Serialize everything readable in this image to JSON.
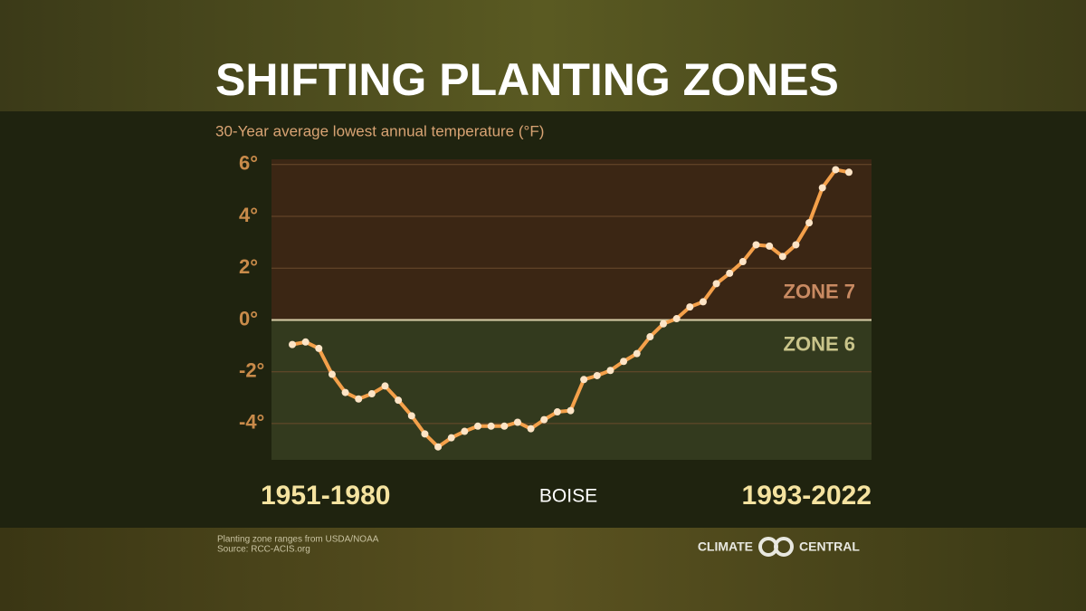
{
  "chart_data": {
    "type": "line",
    "title": "SHIFTING PLANTING ZONES",
    "subtitle": "30-Year average lowest annual temperature (°F)",
    "x_label": "BOISE",
    "categories": [
      "1951-1980",
      null,
      null,
      null,
      null,
      null,
      null,
      null,
      null,
      null,
      null,
      null,
      null,
      null,
      null,
      null,
      null,
      null,
      null,
      null,
      null,
      null,
      null,
      null,
      null,
      null,
      null,
      null,
      null,
      null,
      null,
      null,
      null,
      null,
      null,
      null,
      null,
      null,
      null,
      null,
      null,
      null,
      "1993-2022"
    ],
    "series": [
      {
        "name": "Boise",
        "color": "#f4a04a",
        "values": [
          -0.95,
          -0.85,
          -1.1,
          -2.1,
          -2.8,
          -3.05,
          -2.85,
          -2.55,
          -3.1,
          -3.7,
          -4.4,
          -4.9,
          -4.55,
          -4.3,
          -4.1,
          -4.1,
          -4.1,
          -3.95,
          -4.2,
          -3.85,
          -3.55,
          -3.5,
          -2.3,
          -2.15,
          -1.95,
          -1.6,
          -1.3,
          -0.65,
          -0.15,
          0.05,
          0.5,
          0.7,
          1.4,
          1.8,
          2.25,
          2.9,
          2.85,
          2.45,
          2.9,
          3.75,
          5.1,
          5.8,
          5.7
        ]
      }
    ],
    "ylim": [
      -5.4,
      6.2
    ],
    "yticks": [
      {
        "value": -4,
        "label": "-4°"
      },
      {
        "value": -2,
        "label": "-2°"
      },
      {
        "value": 0,
        "label": "0°"
      },
      {
        "value": 2,
        "label": "2°"
      },
      {
        "value": 4,
        "label": "4°"
      },
      {
        "value": 6,
        "label": "6°"
      }
    ],
    "grid": true,
    "zone_boundary": 0,
    "zones": [
      {
        "label": "ZONE 7",
        "color": "#c98a62"
      },
      {
        "label": "ZONE 6",
        "color": "#c9c48a"
      }
    ],
    "footnotes": [
      "Planting zone ranges from USDA/NOAA",
      "Source: RCC-ACIS.org"
    ],
    "logo": [
      "CLIMATE",
      "CENTRAL"
    ]
  }
}
